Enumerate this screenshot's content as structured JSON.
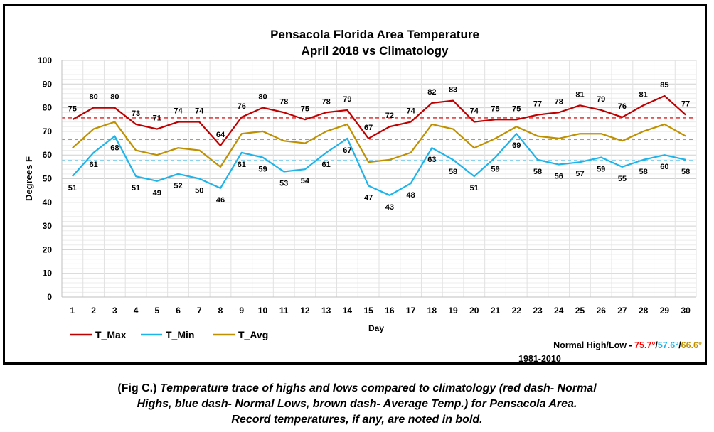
{
  "chart_data": {
    "type": "line",
    "title": "Pensacola Florida Area Temperature",
    "subtitle": "April 2018 vs Climatology",
    "xlabel": "Day",
    "ylabel": "Degrees F",
    "ylim": [
      0,
      100
    ],
    "yticks": [
      0,
      10,
      20,
      30,
      40,
      50,
      60,
      70,
      80,
      90,
      100
    ],
    "x": [
      1,
      2,
      3,
      4,
      5,
      6,
      7,
      8,
      9,
      10,
      11,
      12,
      13,
      14,
      15,
      16,
      17,
      18,
      19,
      20,
      21,
      22,
      23,
      24,
      25,
      26,
      27,
      28,
      29,
      30
    ],
    "grid": true,
    "legend_position": "bottom-left",
    "series": [
      {
        "name": "T_Max",
        "color": "#c00000",
        "values": [
          75,
          80,
          80,
          73,
          71,
          74,
          74,
          64,
          76,
          80,
          78,
          75,
          78,
          79,
          67,
          72,
          74,
          82,
          83,
          74,
          75,
          75,
          77,
          78,
          81,
          79,
          76,
          81,
          85,
          77
        ],
        "labels_shown": true
      },
      {
        "name": "T_Min",
        "color": "#1eb4ea",
        "values": [
          51,
          61,
          68,
          51,
          49,
          52,
          50,
          46,
          61,
          59,
          53,
          54,
          61,
          67,
          47,
          43,
          48,
          63,
          58,
          51,
          59,
          69,
          58,
          56,
          57,
          59,
          55,
          58,
          60,
          58
        ],
        "labels_shown": true
      },
      {
        "name": "T_Avg",
        "color": "#bf9000",
        "values": [
          63,
          71,
          74,
          62,
          60,
          63,
          62,
          55,
          69,
          70,
          66,
          65,
          70,
          73,
          57,
          58,
          61,
          73,
          71,
          63,
          67,
          72,
          68,
          67,
          69,
          69,
          66,
          70,
          73,
          68
        ],
        "labels_shown": false
      }
    ],
    "reference_lines": [
      {
        "value": 75.7,
        "color": "#e02020"
      },
      {
        "value": 57.6,
        "color": "#1eb4ea"
      },
      {
        "value": 66.6,
        "color": "#bf9000"
      }
    ],
    "normals": {
      "prefix": "Normal High/Low - ",
      "high": "75.7°",
      "low": "57.6°",
      "avg": "66.6°",
      "separator": "/",
      "period": "1981-2010",
      "high_color": "#ff0000",
      "low_color": "#1eb4ea",
      "avg_color": "#bf9000"
    }
  },
  "caption": {
    "lead": "(Fig C.) ",
    "line1": "Temperature trace of highs and lows compared to climatology (red dash- Normal",
    "line2": "Highs, blue dash- Normal Lows, brown dash- Average Temp.) for Pensacola Area.",
    "line3": "Record temperatures, if any, are noted in bold."
  }
}
